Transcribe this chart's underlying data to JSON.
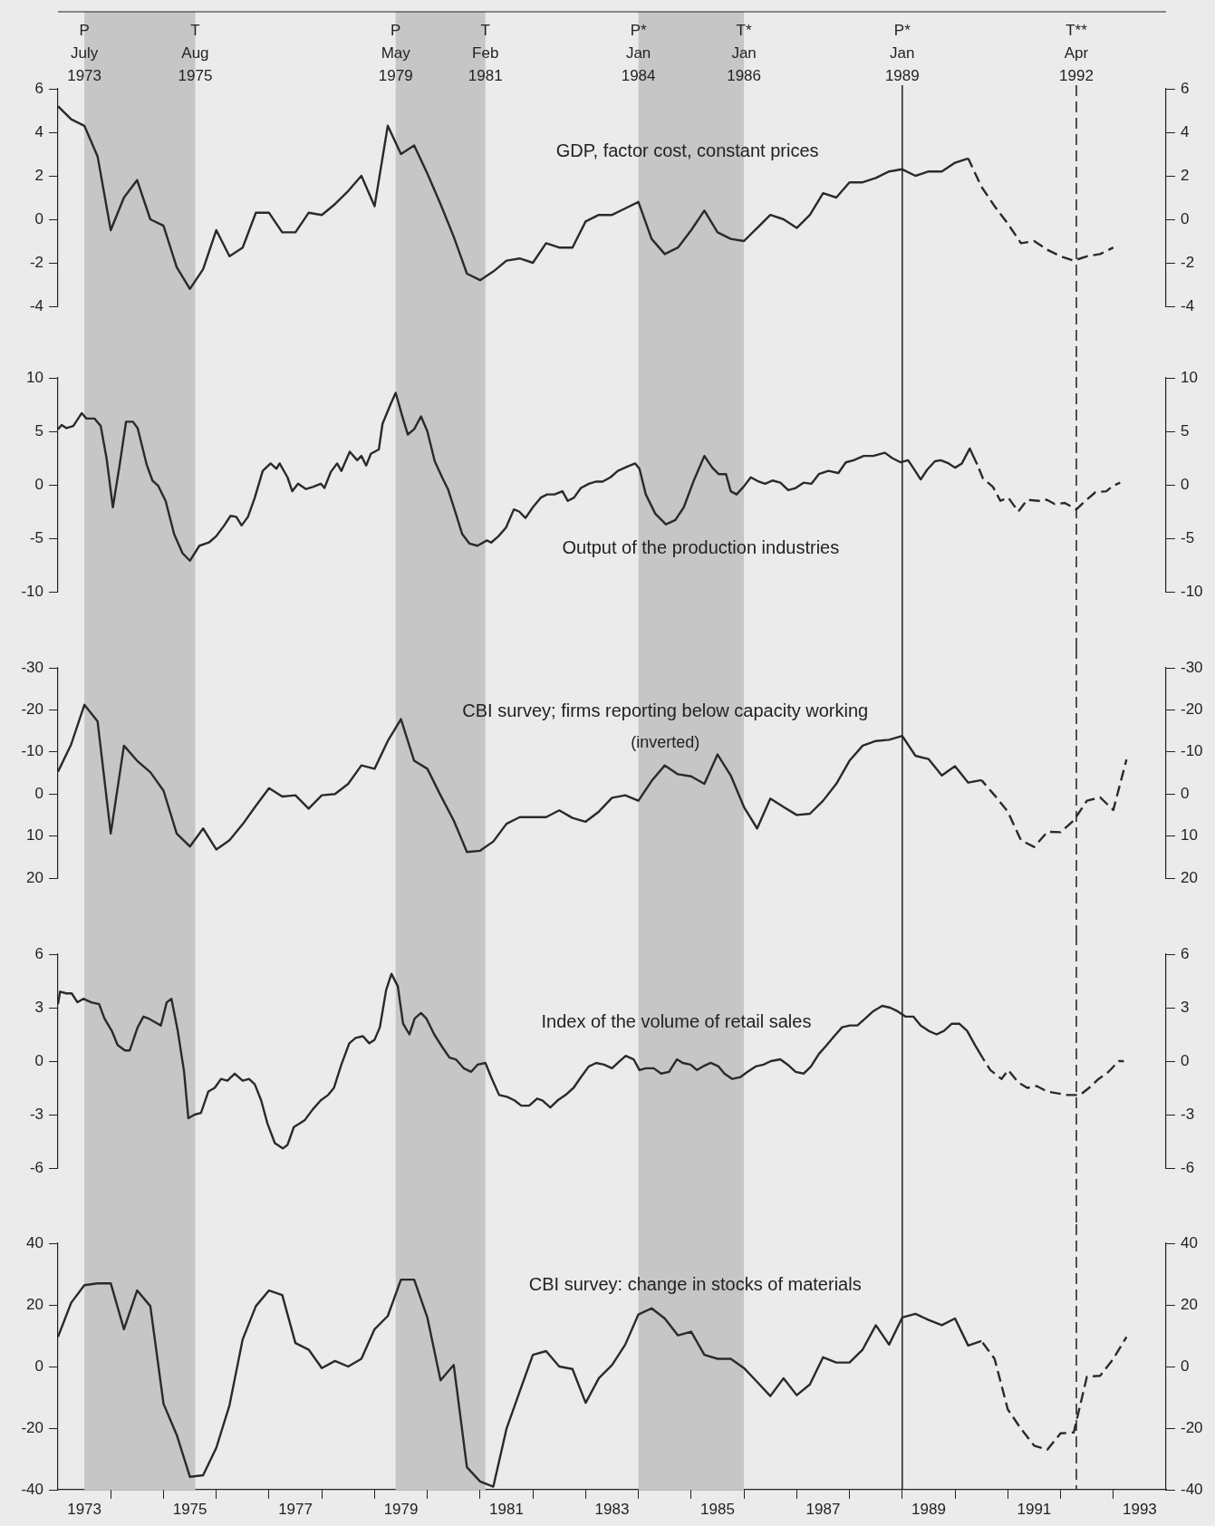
{
  "chart_data": [
    {
      "type": "line",
      "title": "GDP, factor cost, constant prices",
      "tick_labels": "y",
      "x": [
        1973,
        1973.25,
        1973.5,
        1973.75,
        1974,
        1974.25,
        1974.5,
        1974.75,
        1975,
        1975.25,
        1975.5,
        1975.75,
        1976,
        1976.25,
        1976.5,
        1976.75,
        1977,
        1977.25,
        1977.5,
        1977.75,
        1978,
        1978.25,
        1978.5,
        1978.75,
        1979,
        1979.25,
        1979.5,
        1979.75,
        1980,
        1980.25,
        1980.5,
        1980.75,
        1981,
        1981.25,
        1981.5,
        1981.75,
        1982,
        1982.25,
        1982.5,
        1982.75,
        1983,
        1983.25,
        1983.5,
        1983.75,
        1984,
        1984.25,
        1984.5,
        1984.75,
        1985,
        1985.25,
        1985.5,
        1985.75,
        1986,
        1986.25,
        1986.5,
        1986.75,
        1987,
        1987.25,
        1987.5,
        1987.75,
        1988,
        1988.25,
        1988.5,
        1988.75,
        1989,
        1989.25,
        1989.5,
        1989.75,
        1990,
        1990.25
      ],
      "series": [
        {
          "color": "#2a2a2a",
          "line_style": "solid",
          "values": [
            5.2,
            4.6,
            4.3,
            2.9,
            -0.5,
            1.0,
            1.8,
            0.0,
            -0.3,
            -2.2,
            -3.2,
            -2.3,
            -0.5,
            -1.7,
            -1.3,
            0.3,
            0.3,
            -0.6,
            -0.6,
            0.3,
            0.2,
            0.7,
            1.3,
            2.0,
            0.6,
            4.3,
            3.0,
            3.4,
            2.1,
            0.7,
            -0.8,
            -2.5,
            -2.8,
            -2.4,
            -1.9,
            -1.8,
            -2.0,
            -1.1,
            -1.3,
            -1.3,
            -0.1,
            0.2,
            0.2,
            0.5,
            0.8,
            -0.9,
            -1.6,
            -1.3,
            -0.5,
            0.4,
            -0.6,
            -0.9,
            -1.0,
            -0.4,
            0.2,
            0.0,
            -0.4,
            0.2,
            1.2,
            1.0,
            1.7,
            1.7,
            1.9,
            2.2,
            2.3,
            2.0,
            2.2,
            2.2,
            2.6,
            2.8
          ]
        },
        {
          "color": "#2a2a2a",
          "line_style": "dashed",
          "x": [
            1990.25,
            1990.5,
            1990.75,
            1991,
            1991.25,
            1991.5,
            1991.75,
            1992,
            1992.25,
            1992.5,
            1992.75,
            1993
          ],
          "values": [
            2.8,
            1.5,
            0.6,
            -0.2,
            -1.1,
            -1.0,
            -1.4,
            -1.7,
            -1.9,
            -1.7,
            -1.6,
            -1.3
          ]
        }
      ],
      "xlim": [
        1973,
        1994
      ],
      "ylim": [
        -4,
        6
      ],
      "yticks": [
        -4,
        -2,
        0,
        2,
        4,
        6
      ],
      "y2lim": [
        -4,
        6
      ],
      "y2ticks": [
        -4,
        -2,
        0,
        2,
        4,
        6
      ],
      "bands": [
        {
          "axis": "x",
          "from": 1973.5,
          "to": 1975.6,
          "color": "#c6c6c6"
        },
        {
          "axis": "x",
          "from": 1979.4,
          "to": 1981.1,
          "color": "#c6c6c6"
        },
        {
          "axis": "x",
          "from": 1984.0,
          "to": 1986.0,
          "color": "#c6c6c6"
        }
      ],
      "ref_lines": [
        {
          "axis": "x",
          "value": 1989.0,
          "label": "P*\nJan\n1989",
          "color": "#2a2a2a",
          "line_style": "solid"
        },
        {
          "axis": "x",
          "value": 1992.3,
          "label": "T**\nApr\n1992",
          "color": "#2a2a2a",
          "line_style": "dashed"
        }
      ],
      "annotations": [
        {
          "text": "P\nJuly\n1973",
          "x": 1973.5
        },
        {
          "text": "T\nAug\n1975",
          "x": 1975.6
        },
        {
          "text": "P\nMay\n1979",
          "x": 1979.4
        },
        {
          "text": "T\nFeb\n1981",
          "x": 1981.1
        },
        {
          "text": "P*\nJan\n1984",
          "x": 1984.0
        },
        {
          "text": "T*\nJan\n1986",
          "x": 1986.0
        }
      ]
    },
    {
      "type": "line",
      "title": "Output of the production industries",
      "tick_labels": "y",
      "series": [
        {
          "color": "#2a2a2a",
          "line_style": "solid",
          "x": [
            1973,
            1973.07,
            1973.16,
            1973.29,
            1973.45,
            1973.54,
            1973.69,
            1973.81,
            1973.92,
            1974.04,
            1974.17,
            1974.29,
            1974.42,
            1974.51,
            1974.68,
            1974.79,
            1974.9,
            1975.04,
            1975.2,
            1975.36,
            1975.5,
            1975.68,
            1975.86,
            1976,
            1976.15,
            1976.27,
            1976.38,
            1976.48,
            1976.6,
            1976.73,
            1976.88,
            1977.03,
            1977.14,
            1977.2,
            1977.35,
            1977.44,
            1977.55,
            1977.7,
            1977.83,
            1977.98,
            1978.05,
            1978.17,
            1978.29,
            1978.37,
            1978.53,
            1978.67,
            1978.75,
            1978.84,
            1978.93,
            1979.08,
            1979.15,
            1979.3,
            1979.4,
            1979.52,
            1979.63,
            1979.75,
            1979.88,
            1980,
            1980.14,
            1980.29,
            1980.39,
            1980.54,
            1980.66,
            1980.8,
            1980.95,
            1981.13,
            1981.21,
            1981.35,
            1981.49,
            1981.64,
            1981.74,
            1981.86,
            1982,
            1982.15,
            1982.27,
            1982.41,
            1982.56,
            1982.66,
            1982.78,
            1982.91,
            1983.06,
            1983.2,
            1983.32,
            1983.47,
            1983.61,
            1983.79,
            1983.94,
            1984.02,
            1984.14,
            1984.32,
            1984.52,
            1984.7,
            1984.86,
            1985.05,
            1985.25,
            1985.4,
            1985.52,
            1985.66,
            1985.75,
            1985.86,
            1985.99,
            1986.13,
            1986.28,
            1986.4,
            1986.54,
            1986.69,
            1986.84,
            1986.98,
            1987.13,
            1987.28,
            1987.42,
            1987.6,
            1987.79,
            1987.93,
            1988.08,
            1988.27,
            1988.45,
            1988.67,
            1988.81,
            1988.97,
            1989.11,
            1989.22,
            1989.35,
            1989.47,
            1989.62,
            1989.73,
            1989.88,
            1990,
            1990.13,
            1990.28,
            1990.42
          ],
          "values": [
            5.2,
            5.6,
            5.3,
            5.5,
            6.7,
            6.2,
            6.2,
            5.5,
            2.5,
            -2.1,
            1.9,
            5.9,
            5.9,
            5.3,
            1.9,
            0.4,
            -0.1,
            -1.5,
            -4.6,
            -6.4,
            -7.1,
            -5.7,
            -5.4,
            -4.8,
            -3.8,
            -2.9,
            -3.0,
            -3.8,
            -3.0,
            -1.2,
            1.3,
            2.0,
            1.5,
            2.0,
            0.7,
            -0.6,
            0.1,
            -0.4,
            -0.2,
            0.1,
            -0.3,
            1.2,
            2.0,
            1.3,
            3.1,
            2.3,
            2.7,
            1.8,
            2.9,
            3.3,
            5.7,
            7.5,
            8.6,
            6.5,
            4.7,
            5.2,
            6.4,
            5.0,
            2.2,
            0.6,
            -0.4,
            -2.7,
            -4.6,
            -5.5,
            -5.7,
            -5.2,
            -5.4,
            -4.8,
            -4.0,
            -2.3,
            -2.5,
            -3.1,
            -2.1,
            -1.2,
            -0.9,
            -0.9,
            -0.6,
            -1.5,
            -1.2,
            -0.3,
            0.1,
            0.3,
            0.3,
            0.7,
            1.3,
            1.7,
            2.0,
            1.5,
            -0.9,
            -2.7,
            -3.7,
            -3.3,
            -2.1,
            0.4,
            2.7,
            1.6,
            1.0,
            1.0,
            -0.6,
            -0.9,
            -0.2,
            0.7,
            0.3,
            0.1,
            0.4,
            0.2,
            -0.5,
            -0.3,
            0.2,
            0.1,
            1.0,
            1.3,
            1.1,
            2.1,
            2.3,
            2.7,
            2.7,
            3.0,
            2.5,
            2.1,
            2.3,
            1.5,
            0.5,
            1.4,
            2.2,
            2.3,
            2.0,
            1.6,
            2.0,
            3.4,
            1.9
          ]
        },
        {
          "color": "#2a2a2a",
          "line_style": "dashed",
          "x": [
            1990.42,
            1990.53,
            1990.72,
            1990.86,
            1991.01,
            1991.2,
            1991.37,
            1991.59,
            1991.74,
            1991.89,
            1992.08,
            1992.3,
            1992.47,
            1992.66,
            1992.87,
            1992.99,
            1993.13
          ],
          "values": [
            1.9,
            0.6,
            -0.2,
            -1.5,
            -1.2,
            -2.5,
            -1.4,
            -1.5,
            -1.4,
            -1.8,
            -1.7,
            -2.3,
            -1.5,
            -0.7,
            -0.6,
            -0.1,
            0.2
          ]
        }
      ],
      "xlim": [
        1973,
        1994
      ],
      "ylim": [
        -10,
        10
      ],
      "yticks": [
        -10,
        -5,
        0,
        5,
        10
      ],
      "y2lim": [
        -10,
        10
      ],
      "y2ticks": [
        -10,
        -5,
        0,
        5,
        10
      ],
      "bands": [
        {
          "axis": "x",
          "from": 1973.5,
          "to": 1975.6,
          "color": "#c6c6c6"
        },
        {
          "axis": "x",
          "from": 1979.4,
          "to": 1981.1,
          "color": "#c6c6c6"
        },
        {
          "axis": "x",
          "from": 1984.0,
          "to": 1986.0,
          "color": "#c6c6c6"
        }
      ],
      "ref_lines": [
        {
          "axis": "x",
          "value": 1989.0,
          "color": "#2a2a2a",
          "line_style": "solid"
        },
        {
          "axis": "x",
          "value": 1992.3,
          "color": "#2a2a2a",
          "line_style": "dashed"
        }
      ]
    },
    {
      "type": "line",
      "title": "CBI survey; firms reporting below capacity working",
      "subtitle": "(inverted)",
      "tick_labels": "y",
      "x": [
        1973,
        1973.25,
        1973.5,
        1973.75,
        1974,
        1974.25,
        1974.5,
        1974.75,
        1975,
        1975.25,
        1975.5,
        1975.75,
        1976,
        1976.25,
        1976.5,
        1976.75,
        1977,
        1977.25,
        1977.5,
        1977.75,
        1978,
        1978.25,
        1978.5,
        1978.75,
        1979,
        1979.25,
        1979.5,
        1979.75,
        1980,
        1980.25,
        1980.5,
        1980.75,
        1981,
        1981.25,
        1981.5,
        1981.75,
        1982,
        1982.25,
        1982.5,
        1982.75,
        1983,
        1983.25,
        1983.5,
        1983.75,
        1984,
        1984.25,
        1984.5,
        1984.75,
        1985,
        1985.25,
        1985.5,
        1985.75,
        1986,
        1986.25,
        1986.5,
        1986.75,
        1987,
        1987.25,
        1987.5,
        1987.75,
        1988,
        1988.25,
        1988.5,
        1988.75,
        1989,
        1989.25,
        1989.5,
        1989.75,
        1990,
        1990.25,
        1990.5
      ],
      "series": [
        {
          "color": "#2a2a2a",
          "line_style": "solid",
          "values": [
            -5.3,
            -11.8,
            -21.2,
            -17.3,
            9.4,
            -11.5,
            -7.9,
            -5.2,
            -0.8,
            9.4,
            12.5,
            8.2,
            13.2,
            11,
            7.2,
            2.8,
            -1.4,
            0.6,
            0.3,
            3.5,
            0.3,
            0,
            -2.4,
            -6.8,
            -6.0,
            -12.6,
            -17.8,
            -7.9,
            -6.0,
            0.3,
            6.3,
            13.8,
            13.5,
            11.3,
            7.1,
            5.5,
            5.5,
            5.5,
            3.9,
            5.7,
            6.6,
            4.2,
            0.9,
            0.3,
            1.6,
            -3.1,
            -6.8,
            -4.7,
            -4.2,
            -2.4,
            -9.4,
            -4.4,
            3.1,
            8.2,
            1.1,
            3.1,
            5.0,
            4.7,
            1.6,
            -2.4,
            -7.9,
            -11.5,
            -12.6,
            -12.9,
            -13.8,
            -9.1,
            -8.3,
            -4.4,
            -6.6,
            -2.7,
            -3.3
          ]
        },
        {
          "color": "#2a2a2a",
          "line_style": "dashed",
          "x": [
            1990.5,
            1990.75,
            1991,
            1991.25,
            1991.5,
            1991.75,
            1992,
            1992.25,
            1992.5,
            1992.75,
            1993,
            1993.25
          ],
          "values": [
            -3.3,
            0.3,
            4.2,
            11.0,
            12.6,
            9.0,
            9.1,
            6.3,
            1.6,
            0.8,
            3.8,
            -8.2
          ]
        }
      ],
      "xlim": [
        1973,
        1994
      ],
      "ylim": [
        20,
        -30
      ],
      "yticks": [
        -30,
        -20,
        -10,
        0,
        10,
        20
      ],
      "y2lim": [
        20,
        -30
      ],
      "y2ticks": [
        -30,
        -20,
        -10,
        0,
        10,
        20
      ],
      "bands": [
        {
          "axis": "x",
          "from": 1973.5,
          "to": 1975.6,
          "color": "#c6c6c6"
        },
        {
          "axis": "x",
          "from": 1979.4,
          "to": 1981.1,
          "color": "#c6c6c6"
        },
        {
          "axis": "x",
          "from": 1984.0,
          "to": 1986.0,
          "color": "#c6c6c6"
        }
      ],
      "ref_lines": [
        {
          "axis": "x",
          "value": 1989.0,
          "color": "#2a2a2a",
          "line_style": "solid"
        },
        {
          "axis": "x",
          "value": 1992.3,
          "color": "#2a2a2a",
          "line_style": "dashed"
        }
      ]
    },
    {
      "type": "line",
      "title": "Index of the volume of retail sales",
      "tick_labels": "y",
      "series": [
        {
          "color": "#2a2a2a",
          "line_style": "solid",
          "x": [
            1973,
            1973.04,
            1973.16,
            1973.26,
            1973.37,
            1973.48,
            1973.63,
            1973.78,
            1973.88,
            1974.02,
            1974.13,
            1974.27,
            1974.36,
            1974.51,
            1974.62,
            1974.71,
            1974.83,
            1974.95,
            1975.06,
            1975.15,
            1975.27,
            1975.39,
            1975.47,
            1975.59,
            1975.71,
            1975.85,
            1975.97,
            1976.09,
            1976.21,
            1976.35,
            1976.5,
            1976.62,
            1976.73,
            1976.85,
            1976.97,
            1977.11,
            1977.26,
            1977.35,
            1977.47,
            1977.58,
            1977.68,
            1977.83,
            1977.98,
            1978.12,
            1978.23,
            1978.37,
            1978.52,
            1978.64,
            1978.78,
            1978.9,
            1979,
            1979.1,
            1979.22,
            1979.32,
            1979.44,
            1979.54,
            1979.66,
            1979.76,
            1979.88,
            1979.98,
            1980.13,
            1980.28,
            1980.42,
            1980.54,
            1980.69,
            1980.83,
            1980.95,
            1981.1,
            1981.21,
            1981.36,
            1981.51,
            1981.65,
            1981.78,
            1981.93,
            1982.08,
            1982.18,
            1982.33,
            1982.47,
            1982.62,
            1982.77,
            1982.91,
            1983.06,
            1983.2,
            1983.35,
            1983.5,
            1983.61,
            1983.76,
            1983.91,
            1984.02,
            1984.14,
            1984.29,
            1984.43,
            1984.58,
            1984.73,
            1984.84,
            1984.99,
            1985.11,
            1985.22,
            1985.37,
            1985.52,
            1985.63,
            1985.78,
            1985.93,
            1986.07,
            1986.22,
            1986.37,
            1986.51,
            1986.69,
            1986.83,
            1986.98,
            1987.13,
            1987.27,
            1987.42,
            1987.57,
            1987.71,
            1987.86,
            1988.01,
            1988.15,
            1988.3,
            1988.45,
            1988.62,
            1988.77,
            1988.91,
            1989.06,
            1989.21,
            1989.35,
            1989.5,
            1989.65,
            1989.79,
            1989.94,
            1990.08,
            1990.23,
            1990.38,
            1990.52
          ],
          "values": [
            3.2,
            3.9,
            3.8,
            3.8,
            3.3,
            3.5,
            3.3,
            3.2,
            2.4,
            1.7,
            0.9,
            0.6,
            0.6,
            1.9,
            2.5,
            2.4,
            2.2,
            2.0,
            3.3,
            3.5,
            1.7,
            -0.6,
            -3.2,
            -3.0,
            -2.9,
            -1.7,
            -1.5,
            -1.0,
            -1.1,
            -0.7,
            -1.1,
            -1.0,
            -1.3,
            -2.2,
            -3.5,
            -4.6,
            -4.9,
            -4.7,
            -3.7,
            -3.5,
            -3.3,
            -2.7,
            -2.2,
            -1.9,
            -1.5,
            -0.2,
            1.0,
            1.3,
            1.4,
            1.0,
            1.2,
            1.9,
            4.0,
            4.9,
            4.2,
            2.1,
            1.5,
            2.4,
            2.7,
            2.4,
            1.5,
            0.8,
            0.2,
            0.1,
            -0.4,
            -0.6,
            -0.2,
            -0.1,
            -0.9,
            -1.9,
            -2.0,
            -2.2,
            -2.5,
            -2.5,
            -2.1,
            -2.2,
            -2.6,
            -2.2,
            -1.9,
            -1.5,
            -0.9,
            -0.3,
            -0.1,
            -0.2,
            -0.4,
            -0.1,
            0.3,
            0.1,
            -0.5,
            -0.4,
            -0.4,
            -0.7,
            -0.6,
            0.1,
            -0.1,
            -0.2,
            -0.5,
            -0.3,
            -0.1,
            -0.3,
            -0.7,
            -1.0,
            -0.9,
            -0.6,
            -0.3,
            -0.2,
            0.0,
            0.1,
            -0.2,
            -0.6,
            -0.7,
            -0.3,
            0.4,
            0.9,
            1.4,
            1.9,
            2.0,
            2.0,
            2.4,
            2.8,
            3.1,
            3.0,
            2.8,
            2.5,
            2.5,
            2.0,
            1.7,
            1.5,
            1.7,
            2.1,
            2.1,
            1.7,
            0.9,
            0.2
          ]
        },
        {
          "color": "#2a2a2a",
          "line_style": "dashed",
          "x": [
            1990.52,
            1990.67,
            1990.88,
            1991.01,
            1991.2,
            1991.37,
            1991.55,
            1991.74,
            1991.93,
            1992.13,
            1992.37,
            1992.54,
            1992.72,
            1992.91,
            1993.1,
            1993.2
          ],
          "values": [
            0.2,
            -0.5,
            -1.0,
            -0.5,
            -1.2,
            -1.5,
            -1.4,
            -1.7,
            -1.8,
            -1.9,
            -1.9,
            -1.5,
            -1.0,
            -0.6,
            0.0,
            0.0
          ]
        }
      ],
      "xlim": [
        1973,
        1994
      ],
      "ylim": [
        -6,
        6
      ],
      "yticks": [
        -6,
        -3,
        0,
        3,
        6
      ],
      "y2lim": [
        -6,
        6
      ],
      "y2ticks": [
        -6,
        -3,
        0,
        3,
        6
      ],
      "bands": [
        {
          "axis": "x",
          "from": 1973.5,
          "to": 1975.6,
          "color": "#c6c6c6"
        },
        {
          "axis": "x",
          "from": 1979.4,
          "to": 1981.1,
          "color": "#c6c6c6"
        },
        {
          "axis": "x",
          "from": 1984.0,
          "to": 1986.0,
          "color": "#c6c6c6"
        }
      ],
      "ref_lines": [
        {
          "axis": "x",
          "value": 1989.0,
          "color": "#2a2a2a",
          "line_style": "solid"
        },
        {
          "axis": "x",
          "value": 1992.3,
          "color": "#2a2a2a",
          "line_style": "dashed"
        }
      ]
    },
    {
      "type": "line",
      "title": "CBI survey: change in stocks of materials",
      "x": [
        1973,
        1973.25,
        1973.5,
        1973.75,
        1974,
        1974.25,
        1974.5,
        1974.75,
        1975,
        1975.25,
        1975.5,
        1975.75,
        1976,
        1976.25,
        1976.5,
        1976.75,
        1977,
        1977.25,
        1977.5,
        1977.75,
        1978,
        1978.25,
        1978.5,
        1978.75,
        1979,
        1979.25,
        1979.5,
        1979.75,
        1980,
        1980.25,
        1980.5,
        1980.75,
        1981,
        1981.25,
        1981.5,
        1981.75,
        1982,
        1982.25,
        1982.5,
        1982.75,
        1983,
        1983.25,
        1983.5,
        1983.75,
        1984,
        1984.25,
        1984.5,
        1984.75,
        1985,
        1985.25,
        1985.5,
        1985.75,
        1986,
        1986.25,
        1986.5,
        1986.75,
        1987,
        1987.25,
        1987.5,
        1987.75,
        1988,
        1988.25,
        1988.5,
        1988.75,
        1989,
        1989.25,
        1989.5,
        1989.75,
        1990,
        1990.25,
        1990.5
      ],
      "series": [
        {
          "color": "#2a2a2a",
          "line_style": "solid",
          "values": [
            9.6,
            20.7,
            26.4,
            27,
            27,
            12.1,
            24.7,
            19.6,
            -12.1,
            -22.2,
            -35.8,
            -35.3,
            -26.4,
            -12.6,
            8.8,
            19.6,
            24.7,
            23.2,
            7.6,
            5.5,
            -0.5,
            1.8,
            0,
            2.5,
            12.1,
            16.4,
            28.2,
            28.2,
            15.9,
            -4.5,
            0.5,
            -32.7,
            -37.3,
            -39.0,
            -20.2,
            -8.1,
            3.8,
            5.0,
            0,
            -0.8,
            -11.8,
            -3.8,
            0.5,
            7.1,
            16.9,
            18.9,
            15.6,
            10.1,
            11.3,
            3.8,
            2.5,
            2.5,
            -0.5,
            -5.0,
            -9.6,
            -3.8,
            -9.3,
            -5.8,
            3.0,
            1.3,
            1.3,
            5.5,
            13.4,
            7.1,
            15.9,
            17.1,
            15.1,
            13.4,
            15.6,
            6.8,
            8.3
          ]
        },
        {
          "color": "#2a2a2a",
          "line_style": "dashed",
          "x": [
            1990.5,
            1990.75,
            1991,
            1991.25,
            1991.5,
            1991.75,
            1992,
            1992.25,
            1992.5,
            1992.75,
            1993,
            1993.25
          ],
          "values": [
            8.3,
            2.5,
            -13.9,
            -20.2,
            -25.7,
            -27.0,
            -21.7,
            -21.4,
            -3.3,
            -3.0,
            2.5,
            9.6
          ]
        }
      ],
      "xlim": [
        1973,
        1994
      ],
      "ylim": [
        -40,
        40
      ],
      "yticks": [
        -40,
        -20,
        0,
        20,
        40
      ],
      "y2lim": [
        -40,
        40
      ],
      "y2ticks": [
        -40,
        -20,
        0,
        20,
        40
      ],
      "xticks": [
        {
          "value": 1973.5,
          "label": "1973"
        },
        {
          "value": 1974,
          "label": null
        },
        {
          "value": 1975,
          "label": null
        },
        {
          "value": 1975.5,
          "label": "1975"
        },
        {
          "value": 1976,
          "label": null
        },
        {
          "value": 1977,
          "label": null
        },
        {
          "value": 1977.5,
          "label": "1977"
        },
        {
          "value": 1978,
          "label": null
        },
        {
          "value": 1979,
          "label": null
        },
        {
          "value": 1979.5,
          "label": "1979"
        },
        {
          "value": 1980,
          "label": null
        },
        {
          "value": 1981,
          "label": null
        },
        {
          "value": 1981.5,
          "label": "1981"
        },
        {
          "value": 1982,
          "label": null
        },
        {
          "value": 1983,
          "label": null
        },
        {
          "value": 1983.5,
          "label": "1983"
        },
        {
          "value": 1984,
          "label": null
        },
        {
          "value": 1985,
          "label": null
        },
        {
          "value": 1985.5,
          "label": "1985"
        },
        {
          "value": 1986,
          "label": null
        },
        {
          "value": 1987,
          "label": null
        },
        {
          "value": 1987.5,
          "label": "1987"
        },
        {
          "value": 1988,
          "label": null
        },
        {
          "value": 1989,
          "label": null
        },
        {
          "value": 1989.5,
          "label": "1989"
        },
        {
          "value": 1990,
          "label": null
        },
        {
          "value": 1991,
          "label": null
        },
        {
          "value": 1991.5,
          "label": "1991"
        },
        {
          "value": 1992,
          "label": null
        },
        {
          "value": 1993,
          "label": null
        },
        {
          "value": 1993.5,
          "label": "1993"
        }
      ],
      "bands": [
        {
          "axis": "x",
          "from": 1973.5,
          "to": 1975.6,
          "color": "#c6c6c6"
        },
        {
          "axis": "x",
          "from": 1979.4,
          "to": 1981.1,
          "color": "#c6c6c6"
        },
        {
          "axis": "x",
          "from": 1984.0,
          "to": 1986.0,
          "color": "#c6c6c6"
        }
      ],
      "ref_lines": [
        {
          "axis": "x",
          "value": 1989.0,
          "color": "#2a2a2a",
          "line_style": "solid"
        },
        {
          "axis": "x",
          "value": 1992.3,
          "color": "#2a2a2a",
          "line_style": "dashed"
        }
      ]
    }
  ]
}
